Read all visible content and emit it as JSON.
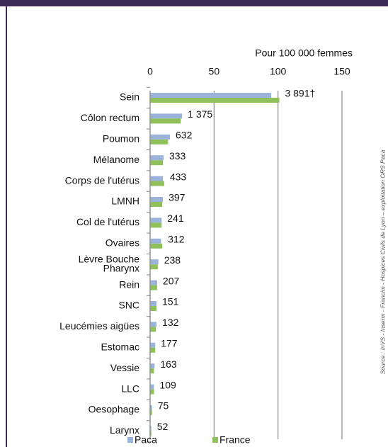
{
  "chart_data": {
    "type": "bar",
    "orientation": "horizontal",
    "x_label": "Pour 100 000 femmes",
    "categories": [
      "Sein",
      "Côlon rectum",
      "Poumon",
      "Mélanome",
      "Corps de l'utérus",
      "LMNH",
      "Col de l'utérus",
      "Ovaires",
      "Lèvre Bouche\nPharynx",
      "Rein",
      "SNC",
      "Leucémies aigües",
      "Estomac",
      "Vessie",
      "LLC",
      "Oesophage",
      "Larynx"
    ],
    "series": [
      {
        "name": "Paca",
        "color": "#9bb3da",
        "values": [
          94.6,
          25,
          15.5,
          10.5,
          10,
          10,
          9,
          8.5,
          6.5,
          5.5,
          5,
          5,
          4,
          3.5,
          3,
          1.5,
          1
        ]
      },
      {
        "name": "France",
        "color": "#8fc05a",
        "values": [
          101,
          24,
          14,
          10,
          11,
          9.5,
          9,
          9.5,
          6,
          5.5,
          5,
          4.5,
          4,
          3,
          3,
          1.5,
          1
        ]
      }
    ],
    "annotations": [
      "3 891†",
      "1 375",
      "632",
      "333",
      "433",
      "397",
      "241",
      "312",
      "238",
      "207",
      "151",
      "132",
      "177",
      "163",
      "109",
      "75",
      "52"
    ],
    "xlim": [
      0,
      150
    ],
    "xticks": [
      0,
      50,
      100,
      150
    ],
    "grid": true,
    "legend": "bottom",
    "source": "Source : InVS - Inserm - Francim - Hospices Civils de Lyon – exploitation ORS Paca"
  }
}
